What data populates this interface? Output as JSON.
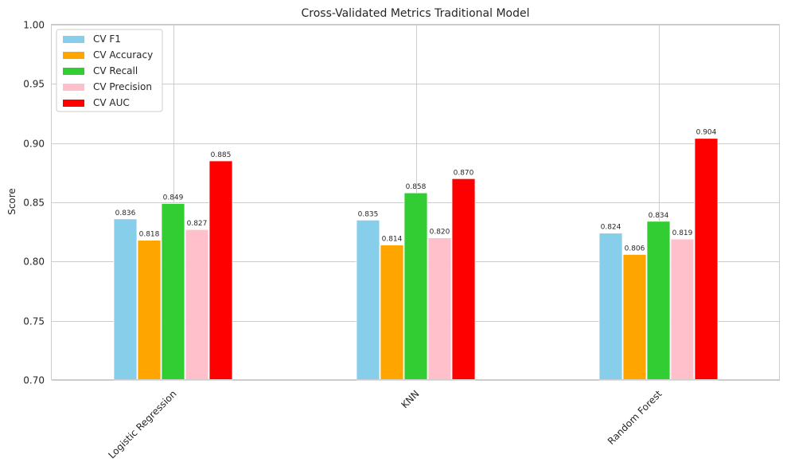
{
  "chart_data": {
    "type": "bar",
    "title": "Cross-Validated Metrics Traditional Model",
    "xlabel": "",
    "ylabel": "Score",
    "ylim": [
      0.7,
      1.0
    ],
    "yticks": [
      "0.70",
      "0.75",
      "0.80",
      "0.85",
      "0.90",
      "0.95",
      "1.00"
    ],
    "categories": [
      "Logistic Regression",
      "KNN",
      "Random Forest"
    ],
    "grid": true,
    "legend_position": "top-left",
    "series": [
      {
        "name": "CV F1",
        "color": "#87ceeb",
        "values": [
          0.836,
          0.835,
          0.824
        ],
        "labels": [
          "0.836",
          "0.835",
          "0.824"
        ]
      },
      {
        "name": "CV Accuracy",
        "color": "#ffa500",
        "values": [
          0.818,
          0.814,
          0.806
        ],
        "labels": [
          "0.818",
          "0.814",
          "0.806"
        ]
      },
      {
        "name": "CV Recall",
        "color": "#32cd32",
        "values": [
          0.849,
          0.858,
          0.834
        ],
        "labels": [
          "0.849",
          "0.858",
          "0.834"
        ]
      },
      {
        "name": "CV Precision",
        "color": "#ffc0cb",
        "values": [
          0.827,
          0.82,
          0.819
        ],
        "labels": [
          "0.827",
          "0.820",
          "0.819"
        ]
      },
      {
        "name": "CV AUC",
        "color": "#ff0000",
        "values": [
          0.885,
          0.87,
          0.904
        ],
        "labels": [
          "0.885",
          "0.870",
          "0.904"
        ]
      }
    ]
  }
}
